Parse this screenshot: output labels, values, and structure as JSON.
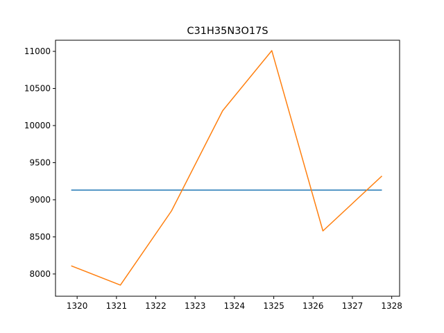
{
  "chart_data": {
    "type": "line",
    "title": "C31H35N3O17S",
    "xlabel": "",
    "ylabel": "",
    "xlim": [
      1319.45,
      1328.2
    ],
    "ylim": [
      7700,
      11150
    ],
    "x_ticks": [
      1320,
      1321,
      1322,
      1323,
      1324,
      1325,
      1326,
      1327,
      1328
    ],
    "y_ticks": [
      8000,
      8500,
      9000,
      9500,
      10000,
      10500,
      11000
    ],
    "grid": false,
    "legend": "none",
    "series": [
      {
        "color": "#1f77b4",
        "x": [
          1319.85,
          1327.75
        ],
        "y": [
          9130,
          9130
        ]
      },
      {
        "color": "#ff7f0e",
        "x": [
          1319.85,
          1321.1,
          1322.4,
          1323.7,
          1324.95,
          1326.25,
          1327.75
        ],
        "y": [
          8110,
          7850,
          8850,
          10200,
          11010,
          8580,
          9320
        ]
      }
    ]
  }
}
